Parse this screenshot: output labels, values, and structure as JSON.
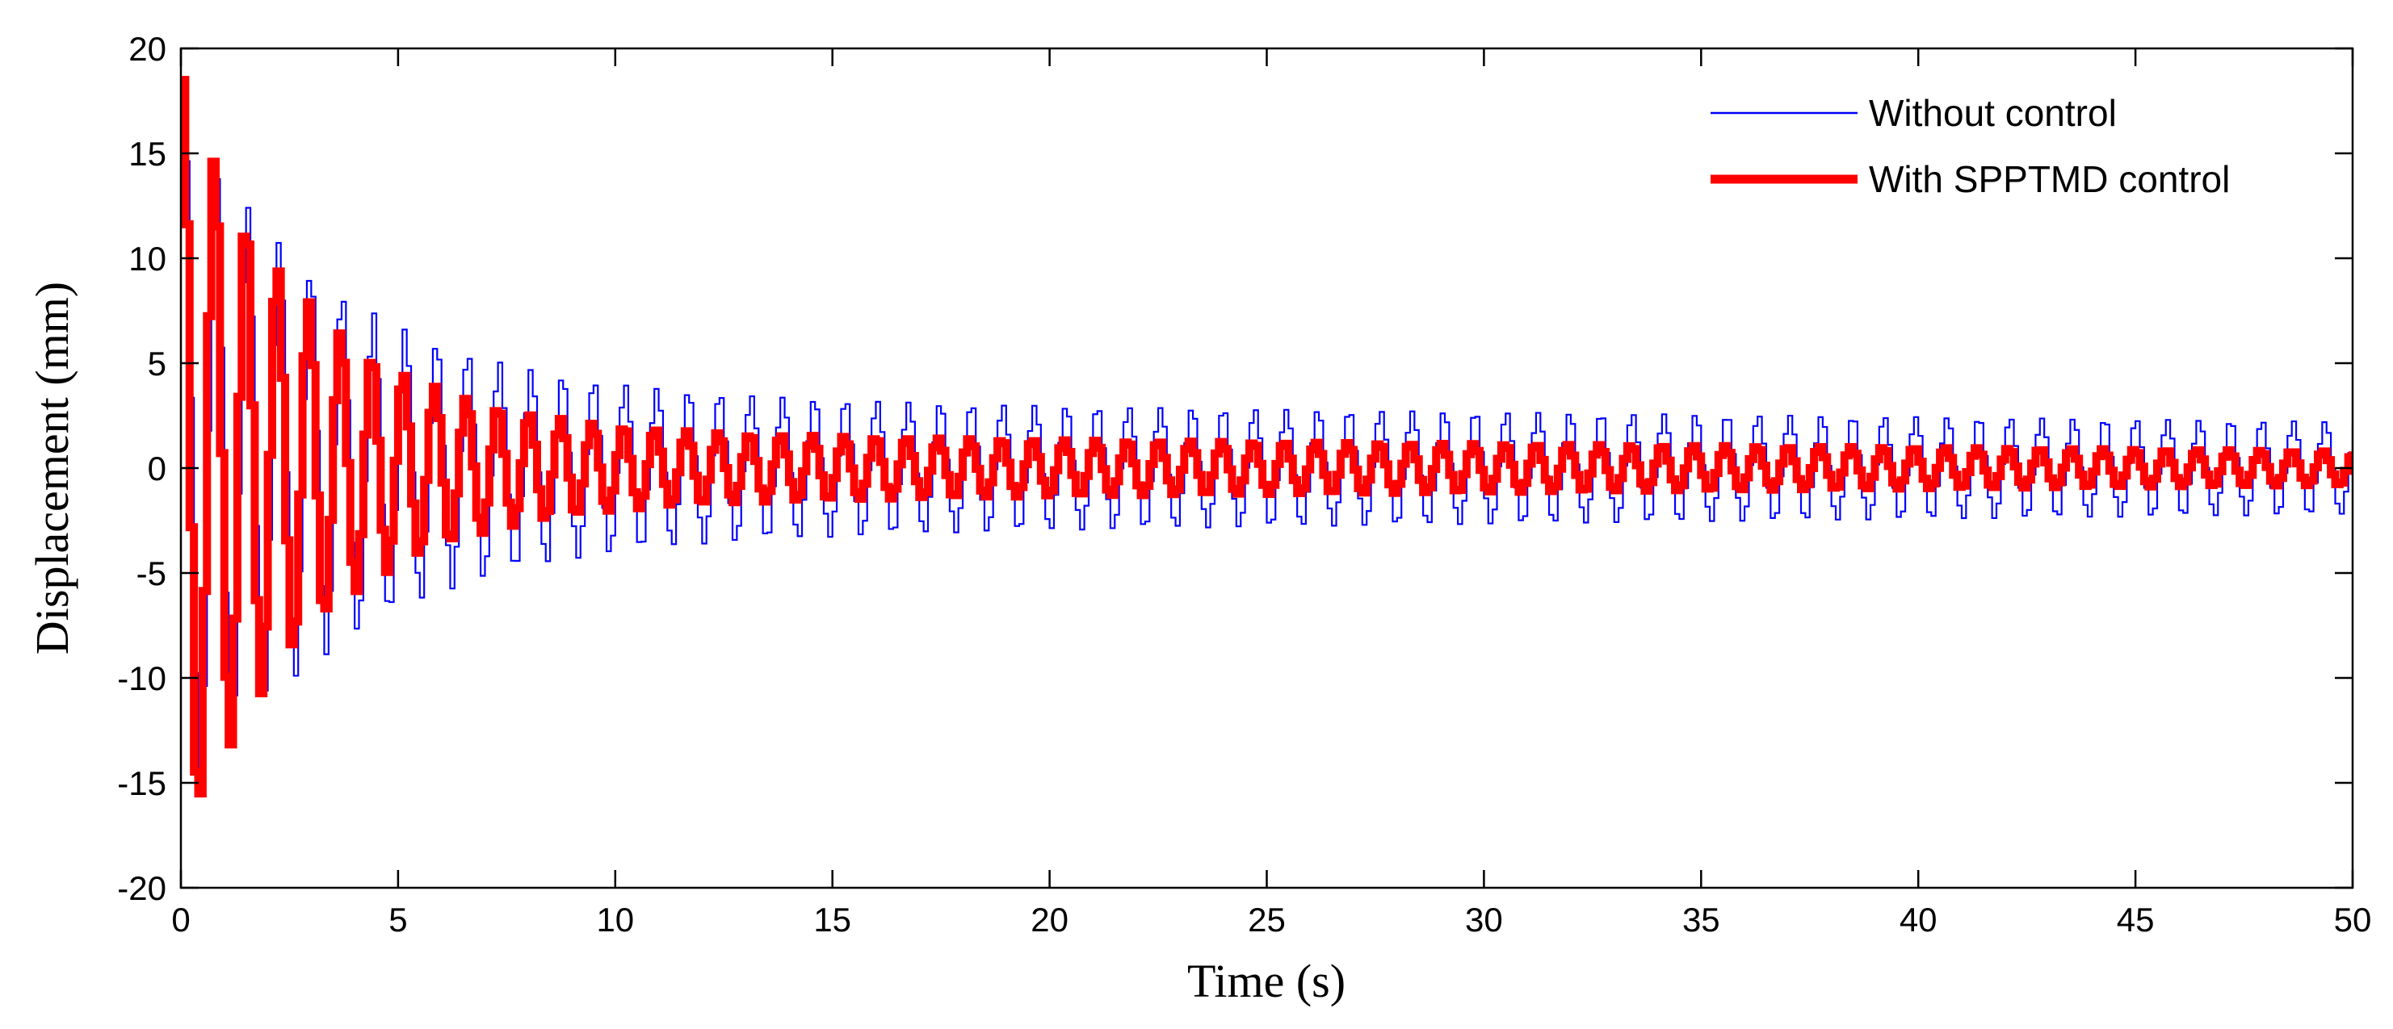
{
  "chart_data": {
    "type": "line",
    "title": "",
    "xlabel": "Time (s)",
    "ylabel": "Displacement (mm)",
    "xlim": [
      0,
      50
    ],
    "ylim": [
      -20,
      20
    ],
    "xticks": [
      0,
      5,
      10,
      15,
      20,
      25,
      30,
      35,
      40,
      45,
      50
    ],
    "xtick_labels": [
      "0",
      "5",
      "10",
      "15",
      "20",
      "25",
      "30",
      "35",
      "40",
      "45",
      "50"
    ],
    "yticks": [
      20,
      15,
      10,
      5,
      0,
      -5,
      -10,
      -15,
      -20
    ],
    "ytick_labels": [
      "20",
      "15",
      "10",
      "5",
      "0",
      "-5",
      "-10",
      "-15",
      "-20"
    ],
    "grid": false,
    "legend_position": "top-right",
    "series": [
      {
        "name": "Without control",
        "color": "#0000ff",
        "line_style": "thin",
        "signal": {
          "frequency_hz": 1.38,
          "initial_amplitude_mm": 17.0,
          "decay_time_constant_s": 3.8,
          "steady_amplitude_mm": 3.0,
          "final_amplitude_mm": 2.2,
          "phase_rad": 1.2,
          "sample_step_s": 0.1
        }
      },
      {
        "name": "With SPPTMD control",
        "color": "#ff0000",
        "line_style": "thick",
        "signal": {
          "frequency_hz": 1.38,
          "initial_amplitude_mm": 18.5,
          "decay_time_constant_s": 3.0,
          "steady_amplitude_mm": 1.4,
          "final_amplitude_mm": 0.8,
          "phase_rad": 1.57,
          "sample_step_s": 0.1
        }
      }
    ]
  }
}
